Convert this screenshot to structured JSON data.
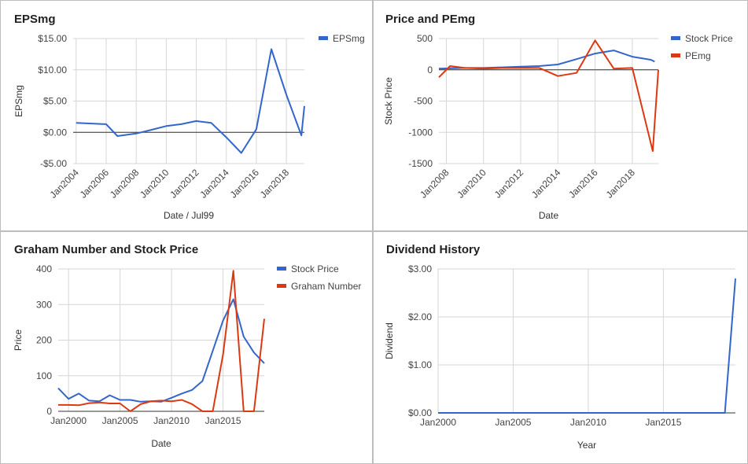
{
  "chart_data": [
    {
      "id": "eps",
      "type": "line",
      "title": "EPSmg",
      "xlabel": "Date / Jul99",
      "ylabel": "EPSmg",
      "x_axis": "year",
      "xlim": [
        2003.8,
        2019.2
      ],
      "ylim": [
        -5,
        15
      ],
      "yticks": [
        -5,
        0,
        5,
        10,
        15
      ],
      "ytick_labels": [
        "-$5.00",
        "$0.00",
        "$5.00",
        "$10.00",
        "$15.00"
      ],
      "xticks": [
        2004,
        2006,
        2008,
        2010,
        2012,
        2014,
        2016,
        2018
      ],
      "xtick_labels": [
        "Jan2004",
        "Jan2006",
        "Jan2008",
        "Jan2010",
        "Jan2012",
        "Jan2014",
        "Jan2016",
        "Jan2018"
      ],
      "vgrid": true,
      "legend_position": "right",
      "zero_line": true,
      "series": [
        {
          "name": "EPSmg",
          "color": "#3366cc",
          "x": [
            2004,
            2006,
            2006.75,
            2008,
            2009,
            2010,
            2011,
            2012,
            2013,
            2014,
            2015,
            2016,
            2017,
            2018,
            2019,
            2019.2
          ],
          "y": [
            1.5,
            1.3,
            -0.6,
            -0.2,
            0.4,
            1.0,
            1.3,
            1.8,
            1.5,
            -0.8,
            -3.3,
            0.5,
            13.3,
            6.0,
            -0.5,
            4.2
          ]
        }
      ]
    },
    {
      "id": "pe",
      "type": "line",
      "title": "Price and PEmg",
      "xlabel": "Date",
      "ylabel": "Stock Price",
      "x_axis": "year",
      "xlim": [
        2007.6,
        2019.4
      ],
      "ylim": [
        -1500,
        500
      ],
      "yticks": [
        -1500,
        -1000,
        -500,
        0,
        500
      ],
      "ytick_labels": [
        "-1500",
        "-1000",
        "-500",
        "0",
        "500"
      ],
      "xticks": [
        2008,
        2010,
        2012,
        2014,
        2016,
        2018
      ],
      "xtick_labels": [
        "Jan2008",
        "Jan2010",
        "Jan2012",
        "Jan2014",
        "Jan2016",
        "Jan2018"
      ],
      "vgrid": true,
      "legend_position": "right",
      "zero_line": true,
      "series": [
        {
          "name": "Stock Price",
          "color": "#3366cc",
          "x": [
            2007.6,
            2009,
            2010,
            2011,
            2012,
            2013,
            2014,
            2015,
            2016,
            2017,
            2018,
            2019,
            2019.2
          ],
          "y": [
            20,
            30,
            30,
            40,
            50,
            60,
            85,
            170,
            260,
            310,
            210,
            160,
            130
          ]
        },
        {
          "name": "PEmg",
          "color": "#dc3912",
          "x": [
            2007.6,
            2008.2,
            2009,
            2010,
            2011,
            2012,
            2013,
            2014,
            2015,
            2016,
            2017,
            2018,
            2019.1,
            2019.4
          ],
          "y": [
            -120,
            60,
            30,
            20,
            30,
            30,
            30,
            -100,
            -50,
            470,
            20,
            30,
            -1300,
            0
          ]
        }
      ]
    },
    {
      "id": "graham",
      "type": "line",
      "title": "Graham Number and Stock Price",
      "xlabel": "Date",
      "ylabel": "Price",
      "x_axis": "year",
      "xlim": [
        1999,
        2019
      ],
      "ylim": [
        0,
        400
      ],
      "yticks": [
        0,
        100,
        200,
        300,
        400
      ],
      "ytick_labels": [
        "0",
        "100",
        "200",
        "300",
        "400"
      ],
      "xticks": [
        2000,
        2005,
        2010,
        2015
      ],
      "xtick_labels": [
        "Jan2000",
        "Jan2005",
        "Jan2010",
        "Jan2015"
      ],
      "vgrid": true,
      "legend_position": "right",
      "zero_line": false,
      "series": [
        {
          "name": "Stock Price",
          "color": "#3366cc",
          "x": [
            1999,
            2000,
            2001,
            2002,
            2003,
            2004,
            2005,
            2006,
            2007,
            2008,
            2009,
            2010,
            2011,
            2012,
            2013,
            2014,
            2015,
            2016,
            2017,
            2018,
            2019
          ],
          "y": [
            65,
            35,
            50,
            30,
            28,
            45,
            32,
            32,
            27,
            28,
            27,
            38,
            50,
            60,
            85,
            170,
            255,
            315,
            210,
            165,
            135
          ]
        },
        {
          "name": "Graham Number",
          "color": "#dc3912",
          "x": [
            1999,
            2000,
            2001,
            2002,
            2003,
            2004,
            2005,
            2006,
            2007,
            2008,
            2009,
            2010,
            2011,
            2012,
            2013,
            2014,
            2015,
            2016,
            2017,
            2018,
            2019
          ],
          "y": [
            18,
            18,
            17,
            23,
            25,
            22,
            22,
            0,
            20,
            28,
            30,
            28,
            32,
            20,
            0,
            0,
            160,
            395,
            0,
            0,
            260
          ]
        }
      ]
    },
    {
      "id": "div",
      "type": "line",
      "title": "Dividend History",
      "xlabel": "Year",
      "ylabel": "Dividend",
      "x_axis": "year",
      "xlim": [
        2000,
        2019.8
      ],
      "ylim": [
        0,
        3
      ],
      "yticks": [
        0,
        1,
        2,
        3
      ],
      "ytick_labels": [
        "$0.00",
        "$1.00",
        "$2.00",
        "$3.00"
      ],
      "xticks": [
        2000,
        2005,
        2010,
        2015
      ],
      "xtick_labels": [
        "Jan2000",
        "Jan2005",
        "Jan2010",
        "Jan2015"
      ],
      "vgrid": true,
      "legend_position": "none",
      "zero_line": false,
      "series": [
        {
          "name": "",
          "color": "#3366cc",
          "x": [
            2000,
            2019.1,
            2019.8
          ],
          "y": [
            0,
            0,
            2.8
          ]
        }
      ]
    }
  ]
}
